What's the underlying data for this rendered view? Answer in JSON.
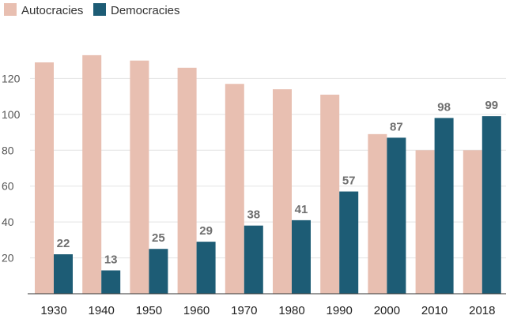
{
  "chart_data": {
    "type": "bar",
    "title": "",
    "xlabel": "",
    "ylabel": "",
    "categories": [
      "1930",
      "1940",
      "1950",
      "1960",
      "1970",
      "1980",
      "1990",
      "2000",
      "2010",
      "2018"
    ],
    "series": [
      {
        "name": "Autocracies",
        "color": "#e8bfb1",
        "values": [
          129,
          133,
          130,
          126,
          117,
          114,
          111,
          89,
          80,
          80
        ],
        "show_labels": false
      },
      {
        "name": "Democracies",
        "color": "#1d5c75",
        "values": [
          22,
          13,
          25,
          29,
          38,
          41,
          57,
          87,
          98,
          99
        ],
        "show_labels": true
      }
    ],
    "ylim": [
      0,
      140
    ],
    "yticks": [
      20,
      40,
      60,
      80,
      100,
      120
    ],
    "grid": true,
    "legend": "top-left"
  }
}
